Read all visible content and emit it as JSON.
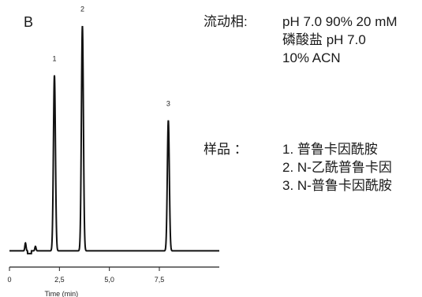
{
  "panel_label": "B",
  "mobile_phase": {
    "label": "流动相:",
    "lines": [
      "pH 7.0 90% 20 mM",
      "磷酸盐 pH 7.0",
      "10% ACN"
    ]
  },
  "sample": {
    "label": "样品 ：",
    "lines": [
      "1. 普鲁卡因酰胺",
      "2. N-乙酰普鲁卡因",
      "3. N-普鲁卡因酰胺"
    ]
  },
  "chart_data": {
    "type": "line",
    "title": "",
    "xlabel": "Time (min)",
    "ylabel": "",
    "xlim": [
      0,
      10.5
    ],
    "ylim": [
      0,
      1.05
    ],
    "x_ticks": [
      0,
      2.5,
      5.0,
      7.5
    ],
    "x_tick_labels": [
      "0",
      "2,5",
      "5,0",
      "7,5"
    ],
    "baseline": 0.03,
    "grid": false,
    "peaks": [
      {
        "label": "1",
        "x": 2.25,
        "height": 0.78
      },
      {
        "label": "2",
        "x": 3.65,
        "height": 1.0
      },
      {
        "label": "3",
        "x": 7.95,
        "height": 0.58
      }
    ],
    "minor_peaks": [
      {
        "x": 0.8,
        "height": 0.035
      },
      {
        "x": 1.3,
        "height": 0.02
      }
    ]
  }
}
